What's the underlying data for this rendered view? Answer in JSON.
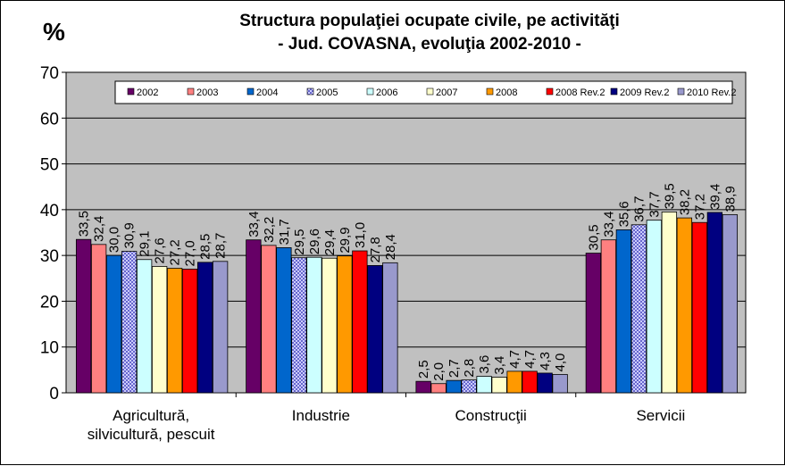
{
  "chart_data": {
    "type": "bar",
    "title": [
      "Structura populaţiei ocupate civile, pe activităţi",
      "- Jud. COVASNA, evoluţia 2002-2010 -"
    ],
    "unit_label": "%",
    "ylim": [
      0,
      70
    ],
    "yticks": [
      "0",
      "10",
      "20",
      "30",
      "40",
      "50",
      "60",
      "70"
    ],
    "grid": true,
    "legend_position": "top",
    "categories": [
      [
        "Agricultură,",
        "silvicultură, pescuit"
      ],
      [
        "Industrie"
      ],
      [
        "Construcţii"
      ],
      [
        "Servicii"
      ]
    ],
    "series": [
      {
        "name": "2002",
        "color": "#660066",
        "values": [
          33.5,
          33.4,
          2.5,
          30.5
        ],
        "labels": [
          "33,5",
          "33,4",
          "2,5",
          "30,5"
        ]
      },
      {
        "name": "2003",
        "color": "#ff8080",
        "values": [
          32.4,
          32.2,
          2.0,
          33.4
        ],
        "labels": [
          "32,4",
          "32,2",
          "2,0",
          "33,4"
        ]
      },
      {
        "name": "2004",
        "color": "#0066cc",
        "values": [
          30.0,
          31.7,
          2.7,
          35.6
        ],
        "labels": [
          "30,0",
          "31,7",
          "2,7",
          "35,6"
        ]
      },
      {
        "name": "2005",
        "color": "#ccccff",
        "pattern": "check",
        "values": [
          30.9,
          29.5,
          2.8,
          36.7
        ],
        "labels": [
          "30,9",
          "29,5",
          "2,8",
          "36,7"
        ]
      },
      {
        "name": "2006",
        "color": "#ccffff",
        "values": [
          29.1,
          29.6,
          3.6,
          37.7
        ],
        "labels": [
          "29,1",
          "29,6",
          "3,6",
          "37,7"
        ]
      },
      {
        "name": "2007",
        "color": "#ffffcc",
        "values": [
          27.6,
          29.4,
          3.4,
          39.5
        ],
        "labels": [
          "27,6",
          "29,4",
          "3,4",
          "39,5"
        ]
      },
      {
        "name": "2008",
        "color": "#ff9900",
        "values": [
          27.2,
          29.9,
          4.7,
          38.2
        ],
        "labels": [
          "27,2",
          "29,9",
          "4,7",
          "38,2"
        ]
      },
      {
        "name": "2008 Rev.2",
        "color": "#ff0000",
        "values": [
          27.0,
          31.0,
          4.7,
          37.2
        ],
        "labels": [
          "27,0",
          "31,0",
          "4,7",
          "37,2"
        ]
      },
      {
        "name": "2009 Rev.2",
        "color": "#000080",
        "values": [
          28.5,
          27.8,
          4.3,
          39.4
        ],
        "labels": [
          "28,5",
          "27,8",
          "4,3",
          "39,4"
        ]
      },
      {
        "name": "2010 Rev.2",
        "color": "#9999cc",
        "values": [
          28.7,
          28.4,
          4.0,
          38.9
        ],
        "labels": [
          "28,7",
          "28,4",
          "4,0",
          "38,9"
        ]
      }
    ],
    "plot_background": "#c0c0c0"
  }
}
